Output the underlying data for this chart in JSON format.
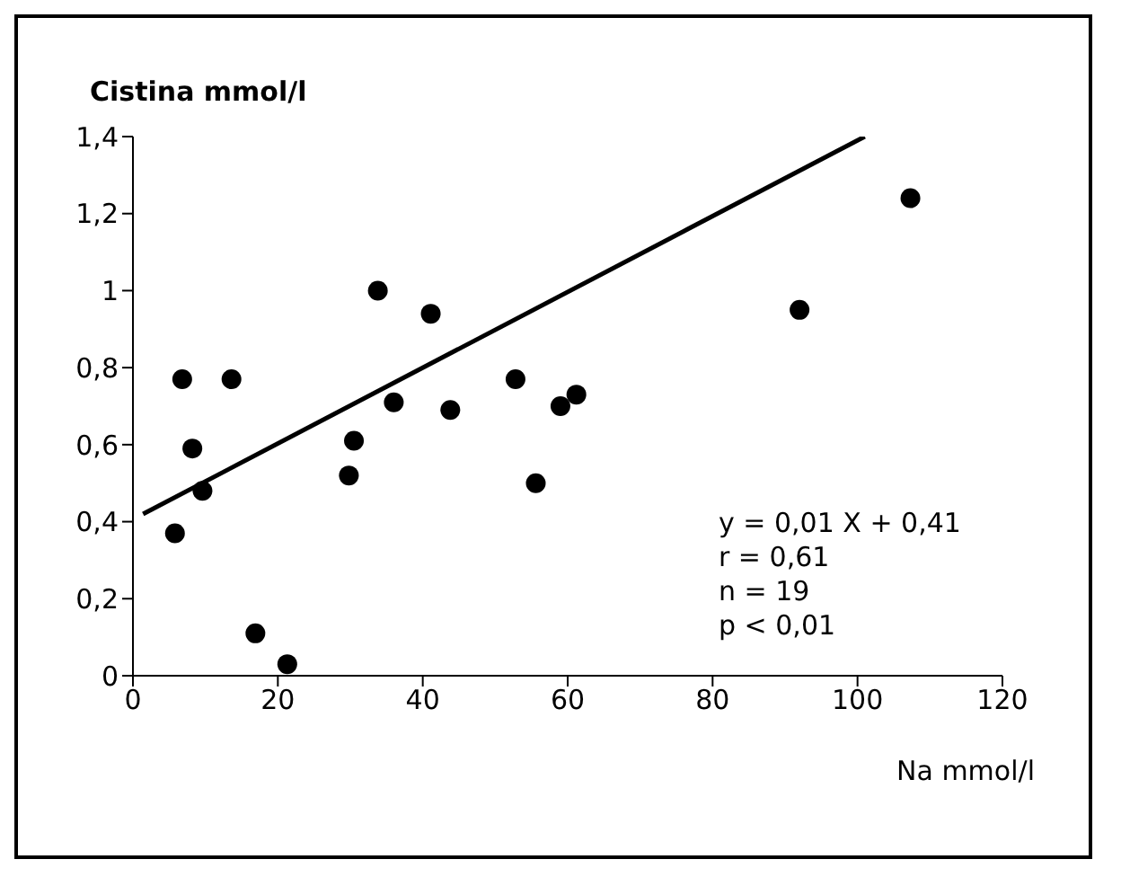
{
  "chart_data": {
    "type": "scatter",
    "ylabel": "Cistina mmol/l",
    "xlabel": "Na mmol/l",
    "xlim": [
      0,
      120
    ],
    "xticks": [
      0,
      20,
      40,
      60,
      80,
      100,
      120
    ],
    "ylim": [
      0,
      1.4
    ],
    "yticks": [
      0,
      {
        "value": 0.2,
        "label": "0,2"
      },
      {
        "value": 0.4,
        "label": "0,4"
      },
      {
        "value": 0.6,
        "label": "0,6"
      },
      {
        "value": 0.8,
        "label": "0,8"
      },
      1,
      {
        "value": 1.2,
        "label": "1,2"
      },
      {
        "value": 1.4,
        "label": "1,4"
      }
    ],
    "grid": false,
    "legend": false,
    "series": [
      {
        "marker": "circle",
        "color": "#000000",
        "x": [
          5.8,
          6.8,
          8.2,
          9.6,
          13.6,
          16.9,
          21.3,
          29.8,
          30.5,
          33.8,
          36,
          41.1,
          43.8,
          52.8,
          55.6,
          59,
          61.2,
          92,
          107.3
        ],
        "values": [
          0.37,
          0.77,
          0.59,
          0.48,
          0.77,
          0.11,
          0.03,
          0.52,
          0.61,
          1.0,
          0.71,
          0.94,
          0.69,
          0.77,
          0.5,
          0.7,
          0.73,
          0.95,
          1.24
        ]
      },
      {
        "type": "line",
        "color": "#000000",
        "x": [
          1.4,
          101
        ],
        "values": [
          0.42,
          1.4
        ]
      }
    ],
    "annotations": [
      "y = 0,01 X + 0,41",
      "r = 0,61",
      "n = 19",
      "p < 0,01"
    ]
  }
}
